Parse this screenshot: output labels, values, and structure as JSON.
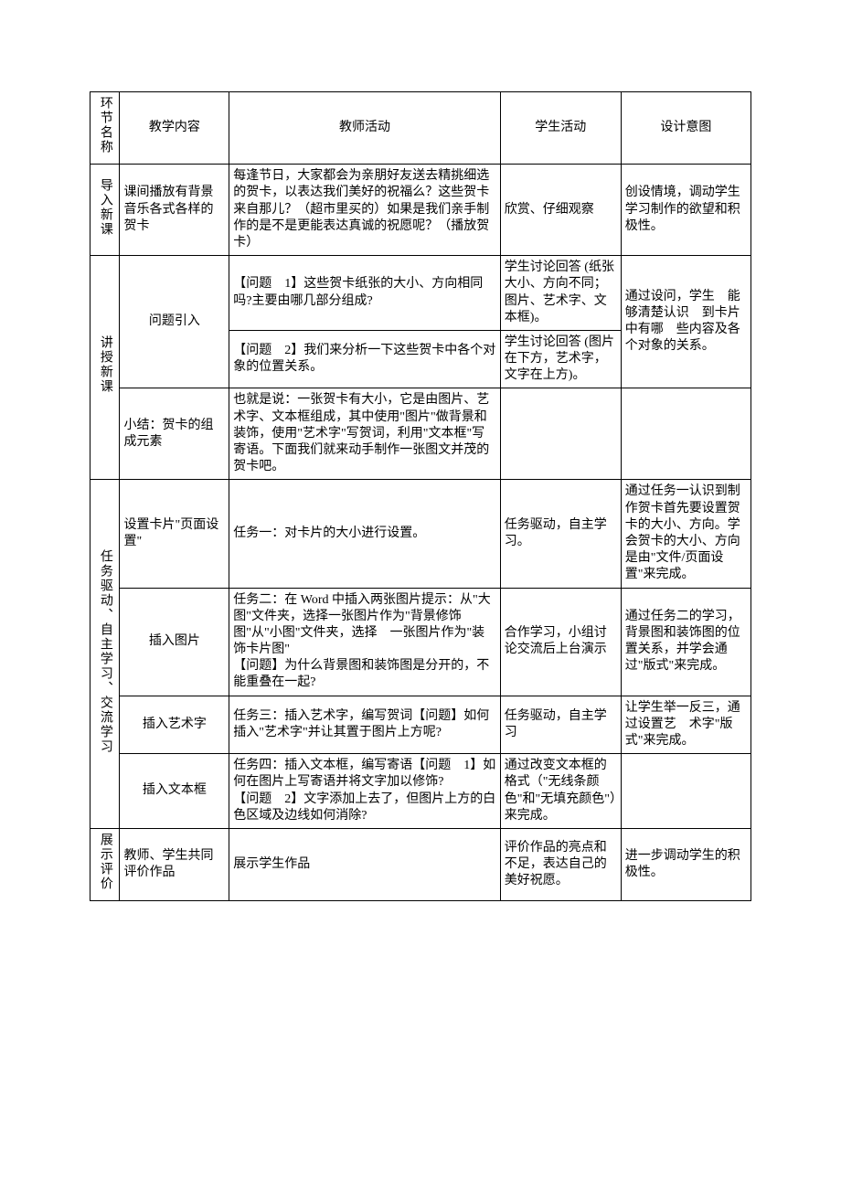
{
  "headers": {
    "section": "环节名称",
    "content": "教学内容",
    "teacher": "教师活动",
    "student": "学生活动",
    "design": "设计意图"
  },
  "rows": {
    "r1": {
      "section": "导入新课",
      "content": "课间播放有背景音乐各式各样的贺卡",
      "teacher": "每逢节日，大家都会为亲朋好友送去精挑细选的贺卡，以表达我们美好的祝福么？这些贺卡来自那儿？（超市里买的）如果是我们亲手制作的是不是更能表达真诚的祝愿呢？（播放贺卡）",
      "student": "欣赏、仔细观察",
      "design": "创设情境，调动学生学习制作的欲望和积极性。"
    },
    "r2": {
      "section": "讲授新课",
      "content": "问题引入",
      "teacher": "【问题　1】这些贺卡纸张的大小、方向相同吗?主要由哪几部分组成?",
      "student": "学生讨论回答 (纸张大小、方向不同；图片、艺术字、文本框)。",
      "design": "通过设问，学生　能够清楚认识　到卡片中有哪　些内容及各个对象的关系。"
    },
    "r3": {
      "teacher": "【问题　2】我们来分析一下这些贺卡中各个对象的位置关系。",
      "student": "学生讨论回答 (图片在下方，艺术字，文字在上方)。"
    },
    "r4": {
      "content": "小结：贺卡的组成元素",
      "teacher": "也就是说：一张贺卡有大小，它是由图片、艺术字、文本框组成，其中使用\"图片\"做背景和装饰，使用\"艺术字\"写贺词，利用\"文本框\"写寄语。下面我们就来动手制作一张图文并茂的贺卡吧。",
      "student": "",
      "design": ""
    },
    "r5": {
      "section": "任务驱动、自主学习、交流学习",
      "content": "设置卡片\"页面设置\"",
      "teacher": "任务一：对卡片的大小进行设置。",
      "student": "任务驱动，自主学习。",
      "design": "通过任务一认识到制作贺卡首先要设置贺卡的大小、方向。学会贺卡的大小、方向是由\"文件/页面设　置\"来完成。"
    },
    "r6": {
      "content": "插入图片",
      "teacher": "任务二：在 Word 中插入两张图片提示：从\"大图\"文件夹，选择一张图片作为\"背景修饰图\"从\"小图\"文件夹，选择　一张图片作为\"装饰卡片图\"\n【问题】为什么背景图和装饰图是分开的，不能重叠在一起?",
      "student": "合作学习，小组讨论交流后上台演示",
      "design": "通过任务二的学习，背景图和装饰图的位置关系，并学会通过\"版式\"来完成。"
    },
    "r7": {
      "content": "插入艺术字",
      "teacher": "任务三：插入艺术字，编写贺词【问题】如何插入\"艺术字\"并让其置于图片上方呢?",
      "student": "任务驱动，自主学习",
      "design": "让学生举一反三，通过设置艺　术字\"版式\"来完成。"
    },
    "r8": {
      "content": "插入文本框",
      "teacher": "任务四：插入文本框，编写寄语【问题　1】如何在图片上写寄语并将文字加以修饰?\n【问题　2】文字添加上去了，但图片上方的白色区域及边线如何消除?",
      "student": "通过改变文本框的格式（\"无线条颜色\"和\"无填充颜色\"）来完成。",
      "design": ""
    },
    "r9": {
      "section": "展示评价",
      "content": "教师、学生共同评价作品",
      "teacher": "展示学生作品",
      "student": "评价作品的亮点和不足，表达自己的美好祝愿。",
      "design": "进一步调动学生的积极性。"
    }
  }
}
